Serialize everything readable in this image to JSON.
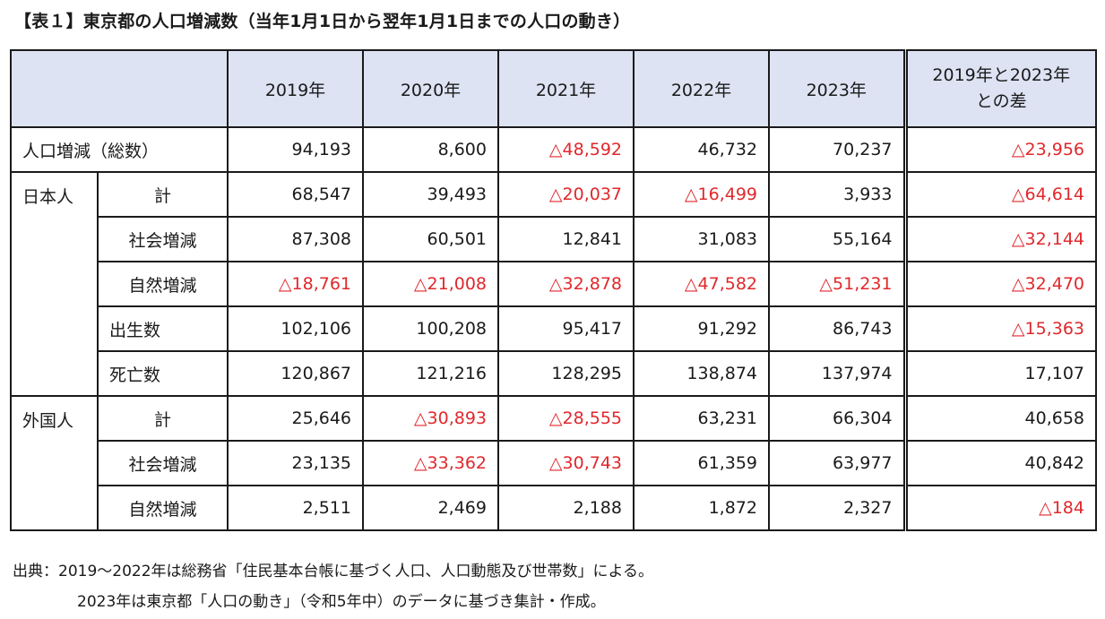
{
  "title": "【表１】東京都の人口増減数（当年1月1日から翌年1月1日までの人口の動き）",
  "header": {
    "years": [
      "2019年",
      "2020年",
      "2021年",
      "2022年",
      "2023年"
    ],
    "diff_line1": "2019年と2023年",
    "diff_line2": "との差"
  },
  "rows": {
    "total": {
      "label": "人口増減（総数）",
      "values": [
        "94,193",
        "8,600",
        "△48,592",
        "46,732",
        "70,237",
        "△23,956"
      ]
    },
    "japanese": {
      "group": "日本人",
      "total": {
        "label": "計",
        "values": [
          "68,547",
          "39,493",
          "△20,037",
          "△16,499",
          "3,933",
          "△64,614"
        ]
      },
      "social": {
        "label": "社会増減",
        "values": [
          "87,308",
          "60,501",
          "12,841",
          "31,083",
          "55,164",
          "△32,144"
        ]
      },
      "natural": {
        "label": "自然増減",
        "values": [
          "△18,761",
          "△21,008",
          "△32,878",
          "△47,582",
          "△51,231",
          "△32,470"
        ]
      },
      "births": {
        "label": "出生数",
        "values": [
          "102,106",
          "100,208",
          "95,417",
          "91,292",
          "86,743",
          "△15,363"
        ]
      },
      "deaths": {
        "label": "死亡数",
        "values": [
          "120,867",
          "121,216",
          "128,295",
          "138,874",
          "137,974",
          "17,107"
        ]
      }
    },
    "foreign": {
      "group": "外国人",
      "total": {
        "label": "計",
        "values": [
          "25,646",
          "△30,893",
          "△28,555",
          "63,231",
          "66,304",
          "40,658"
        ]
      },
      "social": {
        "label": "社会増減",
        "values": [
          "23,135",
          "△33,362",
          "△30,743",
          "61,359",
          "63,977",
          "40,842"
        ]
      },
      "natural": {
        "label": "自然増減",
        "values": [
          "2,511",
          "2,469",
          "2,188",
          "1,872",
          "2,327",
          "△184"
        ]
      }
    }
  },
  "notes": {
    "line1": "出典：2019～2022年は総務省「住民基本台帳に基づく人口、人口動態及び世帯数」による。",
    "line2": "2023年は東京都「人口の動き」（令和5年中）のデータに基づき集計・作成。"
  },
  "colors": {
    "header_bg": "#dde3f3",
    "negative": "#e0282c",
    "border": "#1a1a1a"
  }
}
